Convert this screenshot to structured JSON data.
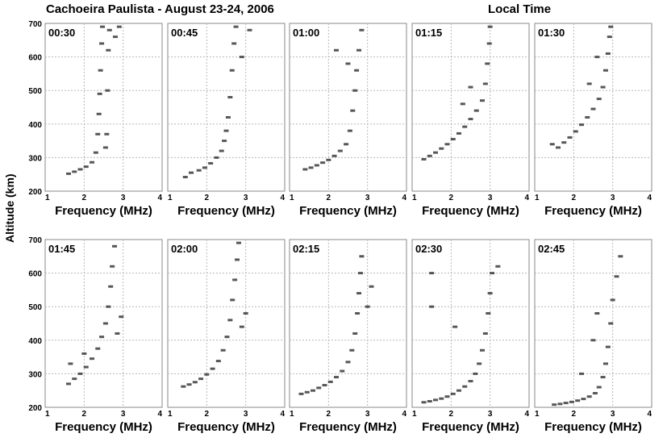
{
  "title": "Cachoeira Paulista - August 23-24, 2006",
  "subtitle": "Local Time",
  "ylabel": "Altitude (km)",
  "xlabel": "Frequency (MHz)",
  "chart_data": {
    "type": "scatter",
    "title": "Cachoeira Paulista - August 23-24, 2006",
    "subtitle": "Local Time",
    "xlabel": "Frequency (MHz)",
    "ylabel": "Altitude (km)",
    "xlim": [
      1,
      4
    ],
    "ylim": [
      200,
      700
    ],
    "x_ticks": [
      "1",
      "2",
      "3",
      "4"
    ],
    "y_ticks": [
      "200",
      "300",
      "400",
      "500",
      "600",
      "700"
    ],
    "grid": true,
    "panels": [
      {
        "time": "00:30",
        "points": [
          [
            1.6,
            252
          ],
          [
            1.75,
            258
          ],
          [
            1.9,
            265
          ],
          [
            2.05,
            273
          ],
          [
            2.2,
            286
          ],
          [
            2.3,
            315
          ],
          [
            2.35,
            370
          ],
          [
            2.38,
            430
          ],
          [
            2.4,
            490
          ],
          [
            2.42,
            560
          ],
          [
            2.45,
            640
          ],
          [
            2.47,
            690
          ],
          [
            2.55,
            330
          ],
          [
            2.58,
            370
          ],
          [
            2.6,
            500
          ],
          [
            2.62,
            620
          ],
          [
            2.65,
            680
          ],
          [
            2.8,
            660
          ],
          [
            2.9,
            690
          ]
        ]
      },
      {
        "time": "00:45",
        "points": [
          [
            1.45,
            242
          ],
          [
            1.6,
            255
          ],
          [
            1.8,
            262
          ],
          [
            1.95,
            270
          ],
          [
            2.1,
            283
          ],
          [
            2.25,
            300
          ],
          [
            2.38,
            320
          ],
          [
            2.45,
            350
          ],
          [
            2.5,
            380
          ],
          [
            2.55,
            420
          ],
          [
            2.6,
            480
          ],
          [
            2.65,
            560
          ],
          [
            2.7,
            640
          ],
          [
            2.75,
            690
          ],
          [
            2.9,
            600
          ],
          [
            3.1,
            680
          ]
        ]
      },
      {
        "time": "01:00",
        "points": [
          [
            1.4,
            265
          ],
          [
            1.55,
            270
          ],
          [
            1.7,
            277
          ],
          [
            1.85,
            285
          ],
          [
            2.0,
            293
          ],
          [
            2.15,
            305
          ],
          [
            2.3,
            320
          ],
          [
            2.45,
            340
          ],
          [
            2.55,
            380
          ],
          [
            2.62,
            440
          ],
          [
            2.68,
            500
          ],
          [
            2.72,
            560
          ],
          [
            2.78,
            620
          ],
          [
            2.85,
            680
          ],
          [
            2.2,
            620
          ],
          [
            2.5,
            580
          ]
        ]
      },
      {
        "time": "01:15",
        "points": [
          [
            1.3,
            295
          ],
          [
            1.45,
            305
          ],
          [
            1.6,
            315
          ],
          [
            1.75,
            327
          ],
          [
            1.9,
            340
          ],
          [
            2.05,
            355
          ],
          [
            2.2,
            372
          ],
          [
            2.35,
            392
          ],
          [
            2.5,
            415
          ],
          [
            2.65,
            440
          ],
          [
            2.8,
            470
          ],
          [
            2.88,
            520
          ],
          [
            2.93,
            580
          ],
          [
            2.98,
            640
          ],
          [
            3.0,
            690
          ],
          [
            2.3,
            460
          ],
          [
            2.5,
            510
          ]
        ]
      },
      {
        "time": "01:30",
        "points": [
          [
            1.45,
            340
          ],
          [
            1.6,
            330
          ],
          [
            1.75,
            345
          ],
          [
            1.9,
            360
          ],
          [
            2.05,
            378
          ],
          [
            2.2,
            398
          ],
          [
            2.35,
            420
          ],
          [
            2.5,
            445
          ],
          [
            2.65,
            475
          ],
          [
            2.75,
            510
          ],
          [
            2.82,
            560
          ],
          [
            2.88,
            610
          ],
          [
            2.92,
            660
          ],
          [
            2.95,
            690
          ],
          [
            2.4,
            520
          ],
          [
            2.6,
            600
          ]
        ]
      },
      {
        "time": "01:45",
        "points": [
          [
            1.6,
            270
          ],
          [
            1.75,
            285
          ],
          [
            1.9,
            300
          ],
          [
            2.05,
            320
          ],
          [
            2.2,
            345
          ],
          [
            2.35,
            375
          ],
          [
            2.45,
            410
          ],
          [
            2.55,
            450
          ],
          [
            2.62,
            500
          ],
          [
            2.68,
            560
          ],
          [
            2.72,
            620
          ],
          [
            2.78,
            680
          ],
          [
            2.85,
            420
          ],
          [
            2.95,
            470
          ],
          [
            1.65,
            330
          ],
          [
            2.0,
            360
          ]
        ]
      },
      {
        "time": "02:00",
        "points": [
          [
            1.4,
            262
          ],
          [
            1.55,
            268
          ],
          [
            1.7,
            275
          ],
          [
            1.85,
            285
          ],
          [
            2.0,
            298
          ],
          [
            2.15,
            315
          ],
          [
            2.3,
            338
          ],
          [
            2.42,
            370
          ],
          [
            2.52,
            410
          ],
          [
            2.6,
            460
          ],
          [
            2.66,
            520
          ],
          [
            2.72,
            580
          ],
          [
            2.78,
            640
          ],
          [
            2.82,
            690
          ],
          [
            2.9,
            440
          ],
          [
            3.0,
            480
          ]
        ]
      },
      {
        "time": "02:15",
        "points": [
          [
            1.3,
            240
          ],
          [
            1.45,
            245
          ],
          [
            1.6,
            250
          ],
          [
            1.75,
            258
          ],
          [
            1.9,
            266
          ],
          [
            2.05,
            276
          ],
          [
            2.2,
            290
          ],
          [
            2.35,
            308
          ],
          [
            2.5,
            335
          ],
          [
            2.6,
            370
          ],
          [
            2.68,
            420
          ],
          [
            2.74,
            480
          ],
          [
            2.78,
            540
          ],
          [
            2.82,
            600
          ],
          [
            2.85,
            650
          ],
          [
            3.0,
            500
          ],
          [
            3.1,
            560
          ]
        ]
      },
      {
        "time": "02:30",
        "points": [
          [
            1.3,
            215
          ],
          [
            1.45,
            218
          ],
          [
            1.6,
            222
          ],
          [
            1.75,
            226
          ],
          [
            1.9,
            232
          ],
          [
            2.05,
            240
          ],
          [
            2.2,
            250
          ],
          [
            2.35,
            262
          ],
          [
            2.5,
            278
          ],
          [
            2.62,
            300
          ],
          [
            2.72,
            330
          ],
          [
            2.8,
            370
          ],
          [
            2.88,
            420
          ],
          [
            2.95,
            480
          ],
          [
            3.0,
            540
          ],
          [
            3.05,
            600
          ],
          [
            1.5,
            500
          ],
          [
            1.5,
            600
          ],
          [
            2.1,
            440
          ],
          [
            3.2,
            620
          ]
        ]
      },
      {
        "time": "02:45",
        "points": [
          [
            1.5,
            208
          ],
          [
            1.65,
            210
          ],
          [
            1.8,
            213
          ],
          [
            1.95,
            216
          ],
          [
            2.1,
            220
          ],
          [
            2.25,
            225
          ],
          [
            2.4,
            232
          ],
          [
            2.55,
            242
          ],
          [
            2.65,
            260
          ],
          [
            2.75,
            290
          ],
          [
            2.82,
            330
          ],
          [
            2.88,
            380
          ],
          [
            2.95,
            450
          ],
          [
            3.0,
            520
          ],
          [
            3.1,
            590
          ],
          [
            3.2,
            650
          ],
          [
            2.2,
            300
          ],
          [
            2.5,
            400
          ],
          [
            2.6,
            480
          ]
        ]
      }
    ]
  }
}
